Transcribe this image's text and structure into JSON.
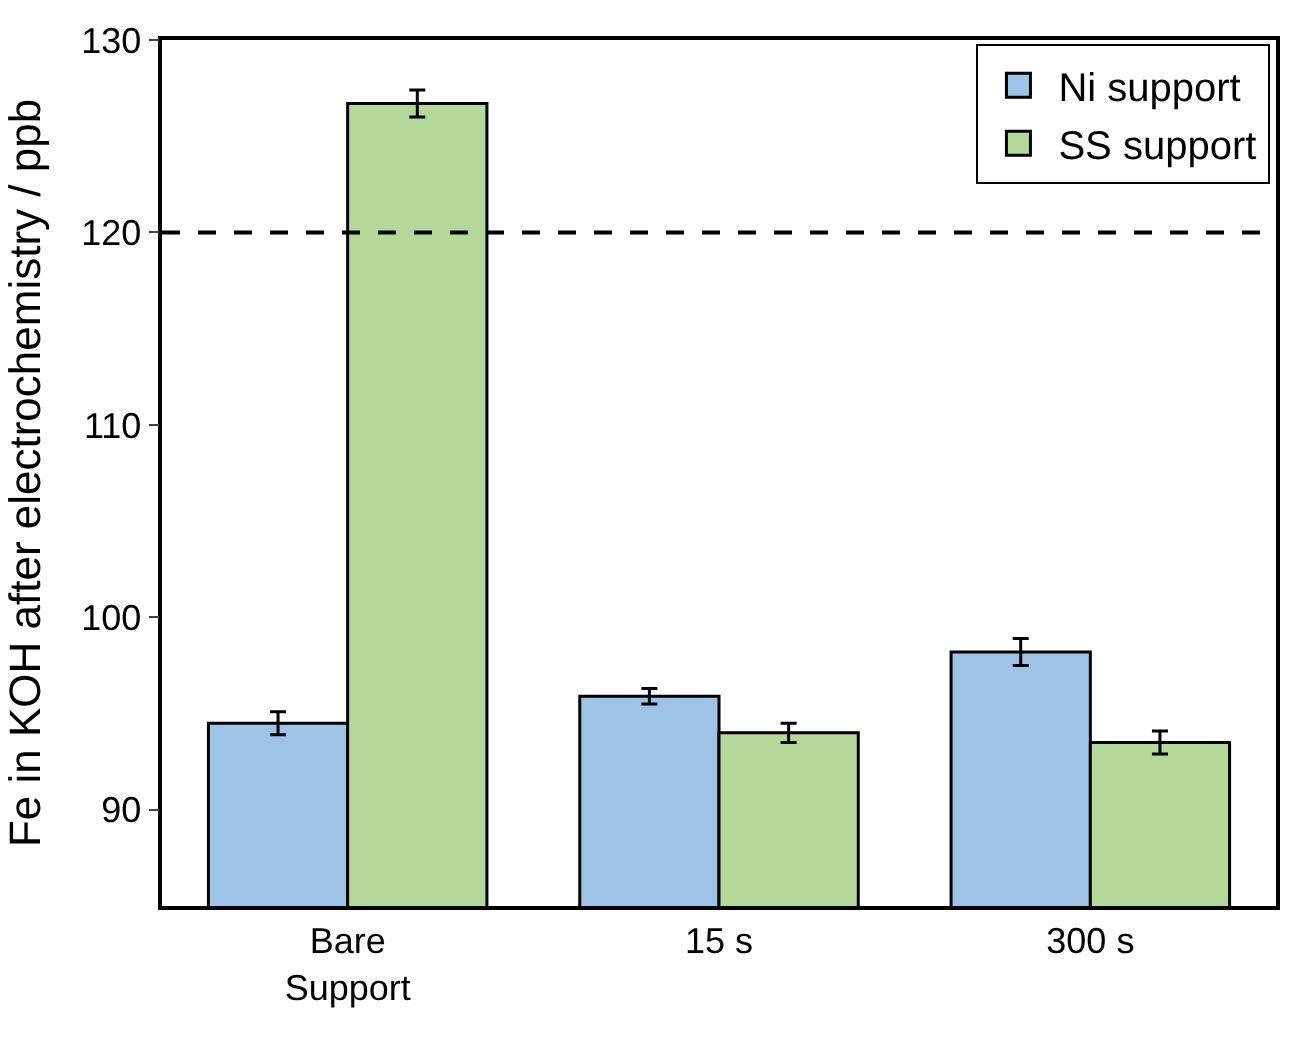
{
  "chart_data": {
    "type": "bar",
    "ylabel": "Fe in KOH after electrochemistry / ppb",
    "categories": [
      "Bare\nSupport",
      "15 s",
      "300 s"
    ],
    "series": [
      {
        "name": "Ni support",
        "color": "#9dc3e6",
        "values": [
          94.5,
          95.9,
          98.2
        ],
        "errors": [
          0.6,
          0.4,
          0.7
        ]
      },
      {
        "name": "SS support",
        "color": "#b4d89a",
        "values": [
          126.7,
          94.0,
          93.5
        ],
        "errors": [
          0.7,
          0.5,
          0.6
        ]
      }
    ],
    "ylim": [
      85,
      130
    ],
    "yticks": [
      90,
      100,
      110,
      120,
      130
    ],
    "ref_lines": [
      {
        "axis": "y",
        "value": 120,
        "line_style": "dashed",
        "color": "#000000"
      }
    ],
    "legend": "top right"
  }
}
